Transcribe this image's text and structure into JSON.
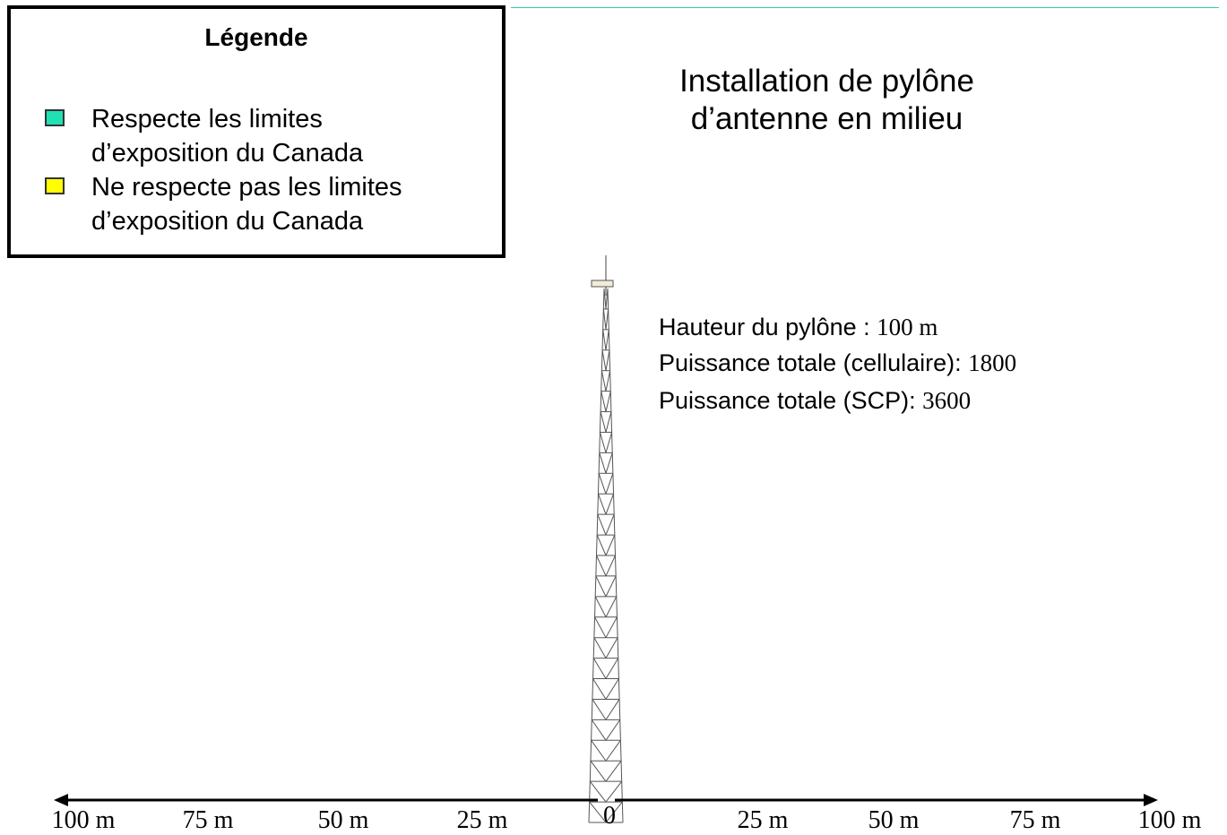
{
  "legend": {
    "title": "Légende",
    "items": [
      {
        "label": "Respecte les limites\nd’exposition du Canada",
        "color": "#20e0b4"
      },
      {
        "label": "Ne respecte pas les limites\nd’exposition du Canada",
        "color": "#ffff00"
      }
    ]
  },
  "title": "Installation de pylône\nd’antenne en milieu",
  "info": [
    {
      "label": "Hauteur du pylône : ",
      "value": "100 m"
    },
    {
      "label": "Puissance totale (cellulaire): ",
      "value": "1800"
    },
    {
      "label": "Puissance totale (SCP): ",
      "value": "3600"
    }
  ],
  "axis": {
    "labels": [
      "100 m",
      "75 m",
      "50 m",
      "25 m",
      "0",
      "25 m",
      "50 m",
      "75 m",
      "100 m"
    ]
  }
}
